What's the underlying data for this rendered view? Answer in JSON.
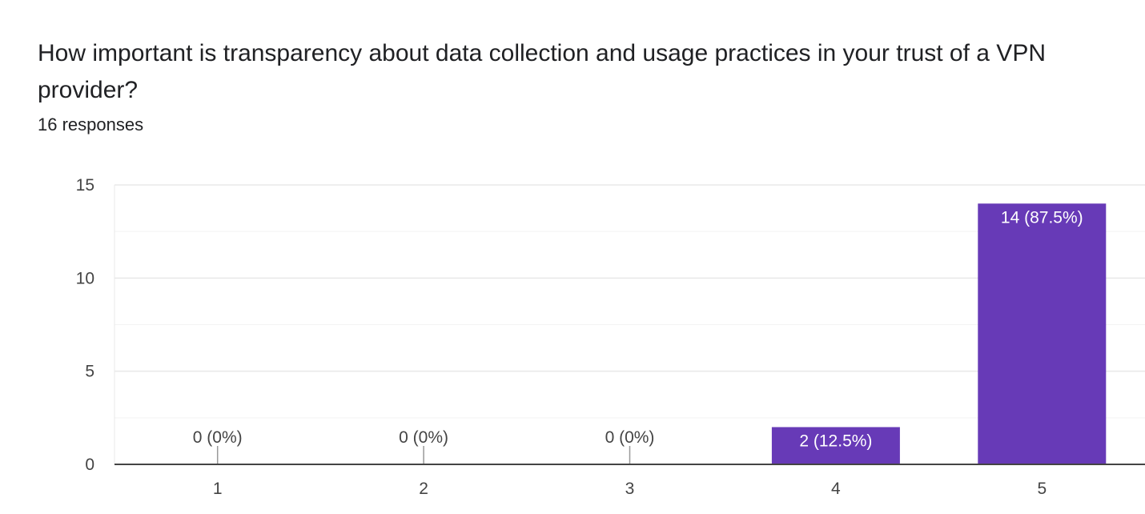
{
  "question": {
    "title": "How important is transparency about data collection and usage practices in your trust of a VPN provider?",
    "responses": "16 responses"
  },
  "colors": {
    "bar": "#673ab7",
    "label_inside": "#ffffff",
    "label_outside": "#444444",
    "grid_major": "#e8e8e8",
    "grid_minor": "#f3f3f3",
    "axis": "#444444"
  },
  "chart_data": {
    "type": "bar",
    "title": "",
    "xlabel": "",
    "ylabel": "",
    "categories": [
      "1",
      "2",
      "3",
      "4",
      "5"
    ],
    "values": [
      0,
      0,
      0,
      2,
      14
    ],
    "data_labels": [
      "0 (0%)",
      "0 (0%)",
      "0 (0%)",
      "2 (12.5%)",
      "14 (87.5%)"
    ],
    "ylim": [
      0,
      15
    ],
    "yticks": [
      0,
      5,
      10,
      15
    ],
    "grid": true,
    "legend": "none"
  }
}
